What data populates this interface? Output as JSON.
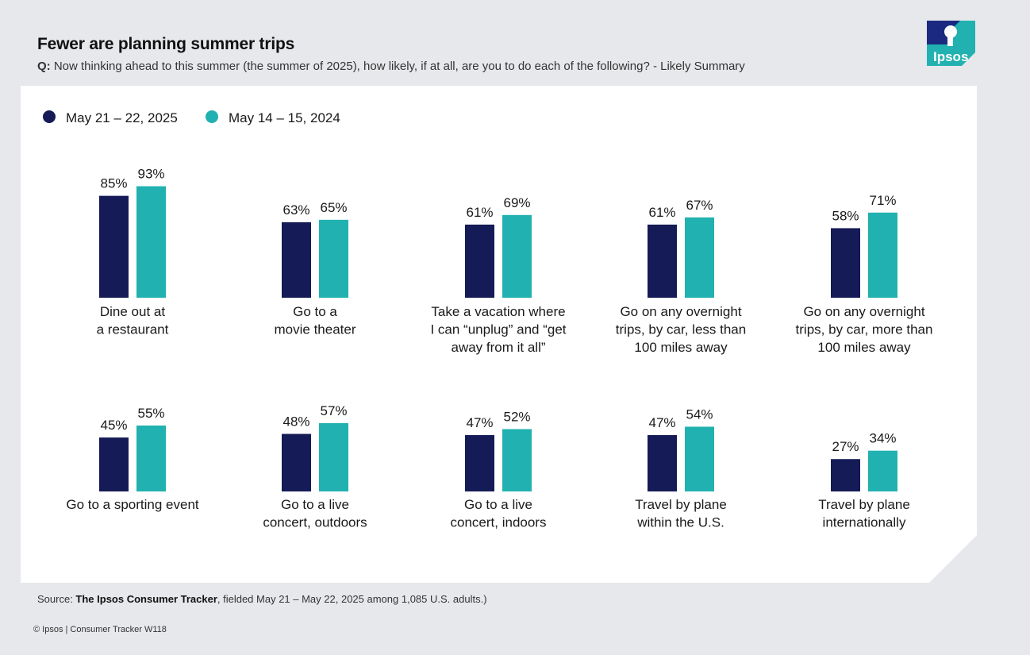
{
  "header": {
    "title": "Fewer are planning summer trips",
    "question_prefix": "Q:",
    "question": "Now thinking ahead to this summer (the summer of 2025), how likely, if at all, are you to do each of the following? - Likely Summary"
  },
  "logo": {
    "text": "Ipsos",
    "icon": "ipsos-logo-icon"
  },
  "colors": {
    "series_2025": "#141b56",
    "series_2024": "#21b1b0",
    "background": "#e6e8eb",
    "card": "#ffffff"
  },
  "chart_data": {
    "type": "bar",
    "title": "Fewer are planning summer trips",
    "xlabel": "",
    "ylabel": "",
    "ylim": [
      0,
      100
    ],
    "grid": false,
    "legend_position": "top-left",
    "categories": [
      [
        "Dine out at",
        "a restaurant"
      ],
      [
        "Go to a",
        "movie theater"
      ],
      [
        "Take a vacation where",
        "I can “unplug” and “get",
        "away from it all”"
      ],
      [
        "Go on any overnight",
        "trips, by car, less than",
        "100 miles away"
      ],
      [
        "Go on any overnight",
        "trips, by car, more than",
        "100 miles away"
      ],
      [
        "Go to a sporting event"
      ],
      [
        "Go to a live",
        "concert, outdoors"
      ],
      [
        "Go to a live",
        "concert, indoors"
      ],
      [
        "Travel by plane",
        "within the U.S."
      ],
      [
        "Travel by plane",
        "internationally"
      ]
    ],
    "series": [
      {
        "name": "May 21 – 22, 2025",
        "values": [
          85,
          63,
          61,
          61,
          58,
          45,
          48,
          47,
          47,
          27
        ]
      },
      {
        "name": "May 14 – 15, 2024",
        "values": [
          93,
          65,
          69,
          67,
          71,
          55,
          57,
          52,
          54,
          34
        ]
      }
    ],
    "value_suffix": "%"
  },
  "footer": {
    "source_prefix": "Source: ",
    "source_bold": "The Ipsos Consumer Tracker",
    "source_rest": ", fielded May 21 – May 22, 2025 among 1,085 U.S. adults.)",
    "copyright": "© Ipsos | Consumer Tracker W118"
  }
}
